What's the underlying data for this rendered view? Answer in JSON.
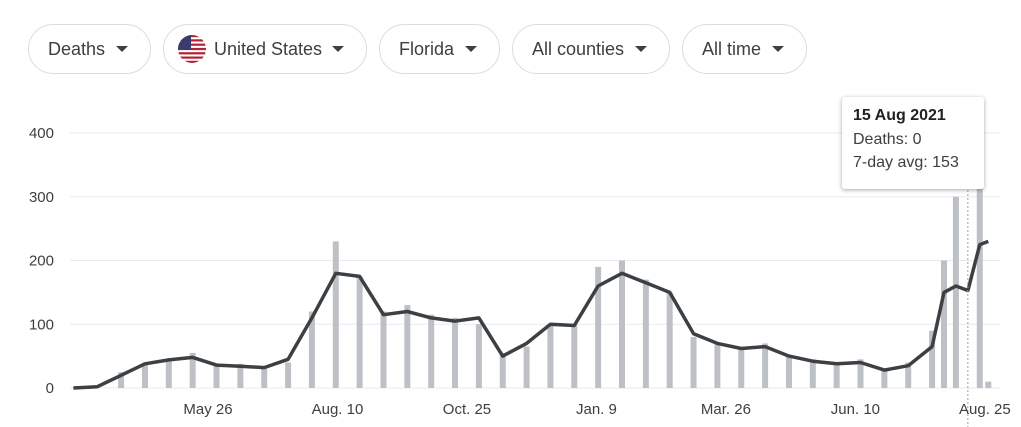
{
  "filters": [
    {
      "label": "Deaths"
    },
    {
      "label": "United States",
      "icon": "us-flag-icon"
    },
    {
      "label": "Florida"
    },
    {
      "label": "All counties"
    },
    {
      "label": "All time"
    }
  ],
  "tooltip": {
    "date": "15 Aug 2021",
    "deaths_label": "Deaths: 0",
    "avg_label": "7-day avg: 153"
  },
  "colors": {
    "bars": "#bdc1c6",
    "line": "#3c4043",
    "grid": "#e8eaed",
    "text": "#3c4043"
  },
  "chart_data": {
    "type": "bar",
    "title": "",
    "xlabel": "",
    "ylabel": "",
    "ylim": [
      0,
      400
    ],
    "yticks": [
      0,
      100,
      200,
      300,
      400
    ],
    "x_tick_labels": [
      "May 26",
      "Aug. 10",
      "Oct. 25",
      "Jan. 9",
      "Mar. 26",
      "Jun. 10",
      "Aug. 25"
    ],
    "x_tick_dates": [
      "2020-05-26",
      "2020-08-10",
      "2020-10-25",
      "2021-01-09",
      "2021-03-26",
      "2021-06-10",
      "2021-08-25"
    ],
    "x_range": [
      "2020-03-06",
      "2021-08-28"
    ],
    "dates": [
      "2020-03-08",
      "2020-03-22",
      "2020-04-05",
      "2020-04-19",
      "2020-05-03",
      "2020-05-17",
      "2020-05-31",
      "2020-06-14",
      "2020-06-28",
      "2020-07-12",
      "2020-07-26",
      "2020-08-09",
      "2020-08-23",
      "2020-09-06",
      "2020-09-20",
      "2020-10-04",
      "2020-10-18",
      "2020-11-01",
      "2020-11-15",
      "2020-11-29",
      "2020-12-13",
      "2020-12-27",
      "2021-01-10",
      "2021-01-24",
      "2021-02-07",
      "2021-02-21",
      "2021-03-07",
      "2021-03-21",
      "2021-04-04",
      "2021-04-18",
      "2021-05-02",
      "2021-05-16",
      "2021-05-30",
      "2021-06-13",
      "2021-06-27",
      "2021-07-11",
      "2021-07-25",
      "2021-08-01",
      "2021-08-08",
      "2021-08-15",
      "2021-08-22",
      "2021-08-27"
    ],
    "series": [
      {
        "name": "Deaths",
        "values": [
          0,
          3,
          25,
          40,
          45,
          55,
          35,
          38,
          30,
          40,
          120,
          230,
          175,
          120,
          130,
          115,
          110,
          100,
          55,
          65,
          100,
          100,
          190,
          200,
          170,
          150,
          80,
          70,
          60,
          70,
          50,
          45,
          40,
          45,
          30,
          40,
          90,
          200,
          300,
          0,
          320,
          10
        ]
      },
      {
        "name": "7-day avg",
        "values": [
          0,
          2,
          20,
          38,
          44,
          48,
          36,
          34,
          32,
          45,
          110,
          180,
          175,
          115,
          120,
          110,
          105,
          110,
          50,
          70,
          100,
          98,
          160,
          180,
          165,
          150,
          85,
          70,
          62,
          65,
          50,
          42,
          38,
          40,
          28,
          35,
          65,
          150,
          160,
          153,
          225,
          230
        ]
      }
    ],
    "highlight": {
      "date": "2021-08-15",
      "deaths": 0,
      "avg_7day": 153
    }
  }
}
